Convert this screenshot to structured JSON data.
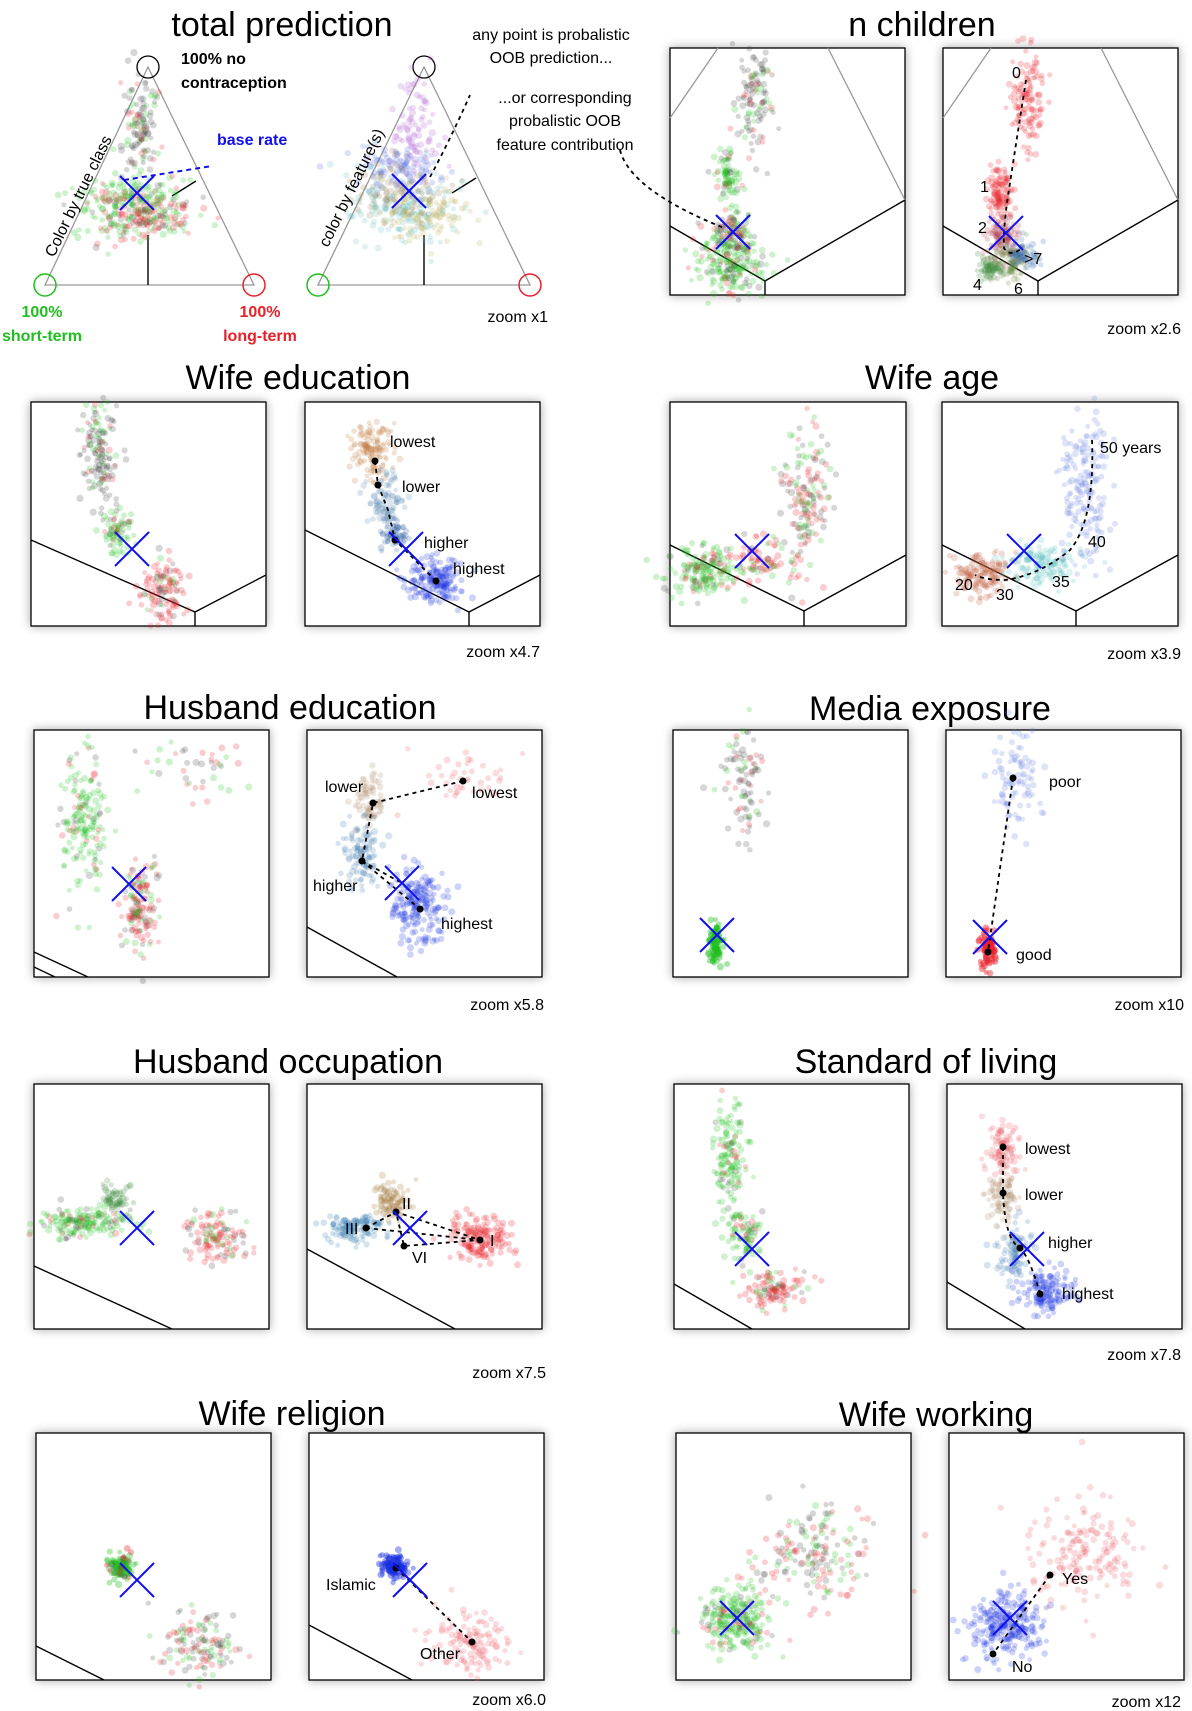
{
  "legend": {
    "title": "total prediction",
    "vertex_top": [
      "100% no",
      "contraception"
    ],
    "vertex_left": [
      "100%",
      "short-term"
    ],
    "vertex_right": [
      "100%",
      "long-term"
    ],
    "base_rate": "base rate",
    "side_true_class": "Color by true class",
    "side_feature": "color by feature(s)",
    "note1": [
      "any point is probalistic",
      "OOB prediction..."
    ],
    "note2": [
      "...or corresponding",
      "probalistic OOB",
      "feature contribution"
    ],
    "zoom": "zoom x1",
    "colors": {
      "short_term": "#1fbf1f",
      "long_term": "#e8202a",
      "none": "#000000",
      "base": "#1010ee"
    }
  },
  "panels": [
    {
      "title": "n children",
      "zoom": "zoom x2.6",
      "labels": [
        "0",
        "1",
        "2",
        ">7",
        "4",
        "6"
      ]
    },
    {
      "title": "Wife education",
      "zoom": "zoom x4.7",
      "labels": [
        "lowest",
        "lower",
        "higher",
        "highest"
      ]
    },
    {
      "title": "Wife age",
      "zoom": "zoom x3.9",
      "labels": [
        "50 years",
        "40",
        "35",
        "30",
        "20"
      ]
    },
    {
      "title": "Husband education",
      "zoom": "zoom x5.8",
      "labels": [
        "lower",
        "lowest",
        "higher",
        "highest"
      ]
    },
    {
      "title": "Media exposure",
      "zoom": "zoom x10",
      "labels": [
        "poor",
        "good"
      ]
    },
    {
      "title": "Husband occupation",
      "zoom": "zoom x7.5",
      "labels": [
        "II",
        "III",
        "I",
        "VI"
      ]
    },
    {
      "title": "Standard of living",
      "zoom": "zoom x7.8",
      "labels": [
        "lowest",
        "lower",
        "higher",
        "highest"
      ]
    },
    {
      "title": "Wife religion",
      "zoom": "zoom x6.0",
      "labels": [
        "Islamic",
        "Other"
      ]
    },
    {
      "title": "Wife working",
      "zoom": "zoom x12",
      "labels": [
        "Yes",
        "No"
      ]
    }
  ]
}
